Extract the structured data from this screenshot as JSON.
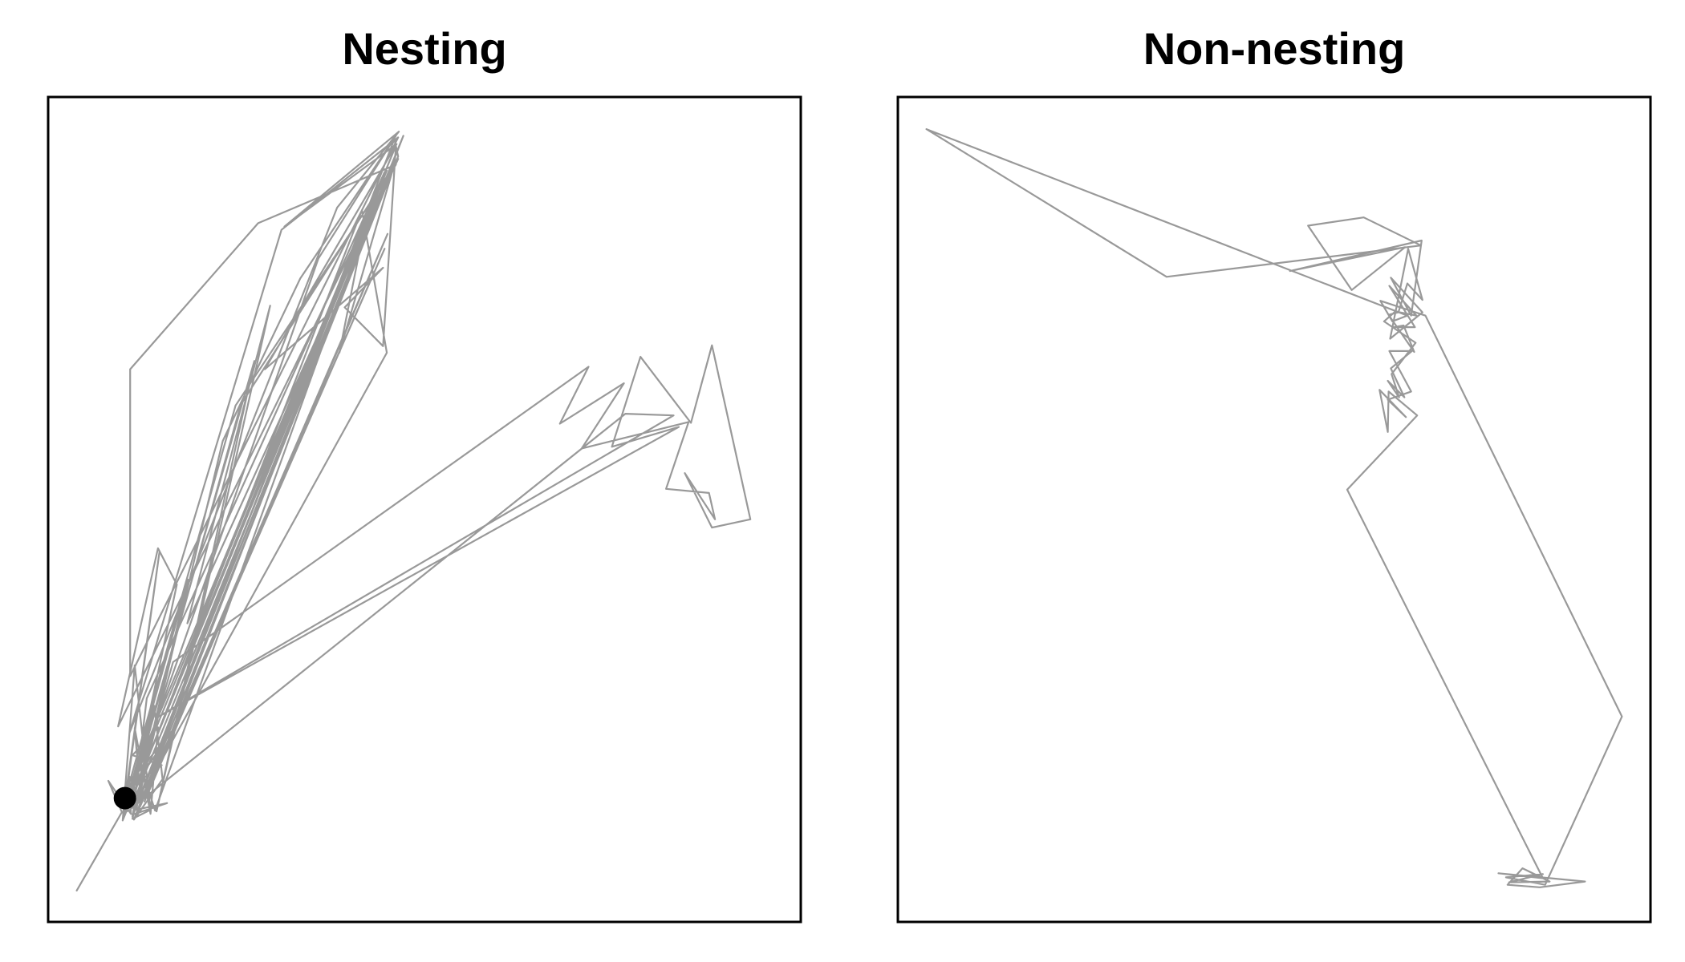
{
  "chart_data": [
    {
      "type": "line",
      "title": "Nesting",
      "xlabel": "",
      "ylabel": "",
      "axes_visible": false,
      "grid": false,
      "xlim": [
        0,
        1000
      ],
      "ylim": [
        0,
        1000
      ],
      "track_color": "#999999",
      "marker_color": "#000000",
      "series": [
        {
          "points": [
            [
              38,
              38
            ],
            [
              98,
              133
            ],
            [
              80,
              171
            ],
            [
              110,
              131
            ],
            [
              108,
              176
            ],
            [
              123,
              147
            ],
            [
              115,
              235
            ],
            [
              136,
              131
            ],
            [
              146,
              236
            ],
            [
              112,
              202
            ],
            [
              151,
              190
            ],
            [
              109,
              163
            ],
            [
              186,
              415
            ],
            [
              112,
              125
            ],
            [
              136,
              136
            ],
            [
              115,
              311
            ],
            [
              99,
              123
            ],
            [
              141,
              262
            ],
            [
              152,
              173
            ],
            [
              114,
              124
            ],
            [
              460,
              949
            ],
            [
              465,
              928
            ],
            [
              116,
              127
            ],
            [
              447,
              816
            ],
            [
              119,
              135
            ],
            [
              451,
              834
            ],
            [
              128,
              146
            ],
            [
              472,
              953
            ],
            [
              107,
              142
            ],
            [
              429,
              862
            ],
            [
              93,
              237
            ],
            [
              146,
              453
            ],
            [
              171,
              409
            ],
            [
              117,
              178
            ],
            [
              274,
              680
            ],
            [
              144,
              134
            ],
            [
              295,
              747
            ],
            [
              185,
              362
            ],
            [
              465,
              925
            ],
            [
              256,
              627
            ],
            [
              105,
              134
            ],
            [
              417,
              863
            ],
            [
              450,
              690
            ],
            [
              117,
              140
            ],
            [
              458,
              912
            ],
            [
              387,
              690
            ],
            [
              418,
              833
            ],
            [
              142,
              135
            ],
            [
              123,
              190
            ],
            [
              359,
              804
            ],
            [
              462,
              953
            ],
            [
              335,
              780
            ],
            [
              232,
              583
            ],
            [
              112,
              125
            ],
            [
              131,
              271
            ],
            [
              447,
              909
            ],
            [
              99,
              123
            ],
            [
              148,
              449
            ],
            [
              101,
              141
            ],
            [
              462,
              941
            ],
            [
              445,
              698
            ],
            [
              394,
              745
            ],
            [
              445,
              793
            ],
            [
              288,
              670
            ],
            [
              463,
              943
            ],
            [
              314,
              843
            ],
            [
              466,
              958
            ],
            [
              384,
              866
            ],
            [
              108,
              229
            ],
            [
              310,
              839
            ],
            [
              465,
              951
            ],
            [
              109,
              298
            ],
            [
              109,
              670
            ],
            [
              279,
              847
            ],
            [
              462,
              918
            ],
            [
              249,
              626
            ],
            [
              102,
              149
            ],
            [
              165,
              232
            ],
            [
              111,
              172
            ],
            [
              450,
              911
            ],
            [
              112,
              130
            ],
            [
              158,
              144
            ],
            [
              117,
              136
            ],
            [
              149,
              260
            ],
            [
              112,
              128
            ],
            [
              460,
              921
            ],
            [
              109,
              136
            ],
            [
              166,
              315
            ],
            [
              718,
              673
            ],
            [
              680,
              604
            ],
            [
              765,
              653
            ],
            [
              709,
              574
            ],
            [
              851,
              606
            ],
            [
              821,
              525
            ],
            [
              878,
              520
            ],
            [
              886,
              488
            ],
            [
              846,
              544
            ],
            [
              882,
              478
            ],
            [
              933,
              488
            ],
            [
              882,
              699
            ],
            [
              854,
              605
            ],
            [
              787,
              685
            ],
            [
              749,
              576
            ],
            [
              838,
              600
            ],
            [
              147,
              249
            ],
            [
              831,
              614
            ],
            [
              767,
              616
            ],
            [
              111,
              138
            ]
          ]
        }
      ],
      "nest_location": [
        102,
        150
      ]
    },
    {
      "type": "line",
      "title": "Non-nesting",
      "xlabel": "",
      "ylabel": "",
      "axes_visible": false,
      "grid": false,
      "xlim": [
        0,
        1000
      ],
      "ylim": [
        0,
        1000
      ],
      "track_color": "#999999",
      "marker_color": "#000000",
      "series": [
        {
          "points": [
            [
              38,
              961
            ],
            [
              357,
              782
            ],
            [
              695,
              820
            ],
            [
              619,
              854
            ],
            [
              545,
              844
            ],
            [
              603,
              766
            ],
            [
              674,
              818
            ],
            [
              521,
              789
            ],
            [
              696,
              826
            ],
            [
              682,
              735
            ],
            [
              655,
              781
            ],
            [
              697,
              739
            ],
            [
              654,
              707
            ],
            [
              678,
              816
            ],
            [
              697,
              754
            ],
            [
              677,
              774
            ],
            [
              665,
              739
            ],
            [
              652,
              736
            ],
            [
              686,
              691
            ],
            [
              672,
              723
            ],
            [
              659,
              721
            ],
            [
              687,
              721
            ],
            [
              653,
              771
            ],
            [
              689,
              735
            ],
            [
              661,
              740
            ],
            [
              646,
              728
            ],
            [
              688,
              702
            ],
            [
              656,
              664
            ],
            [
              666,
              636
            ],
            [
              651,
              656
            ],
            [
              673,
              636
            ],
            [
              655,
              671
            ],
            [
              683,
              692
            ],
            [
              653,
              692
            ],
            [
              682,
              643
            ],
            [
              651,
              633
            ],
            [
              675,
              612
            ],
            [
              640,
              645
            ],
            [
              651,
              594
            ],
            [
              652,
              643
            ],
            [
              690,
              614
            ],
            [
              597,
              524
            ],
            [
              857,
              53
            ],
            [
              798,
              59
            ],
            [
              913,
              49
            ],
            [
              853,
              42
            ],
            [
              810,
              45
            ],
            [
              830,
              65
            ],
            [
              866,
              49
            ],
            [
              812,
              48
            ],
            [
              857,
              58
            ],
            [
              808,
              54
            ],
            [
              860,
              45
            ],
            [
              962,
              249
            ],
            [
              701,
              735
            ],
            [
              641,
              753
            ],
            [
              657,
              728
            ],
            [
              677,
              735
            ],
            [
              38,
              961
            ]
          ]
        }
      ]
    }
  ]
}
